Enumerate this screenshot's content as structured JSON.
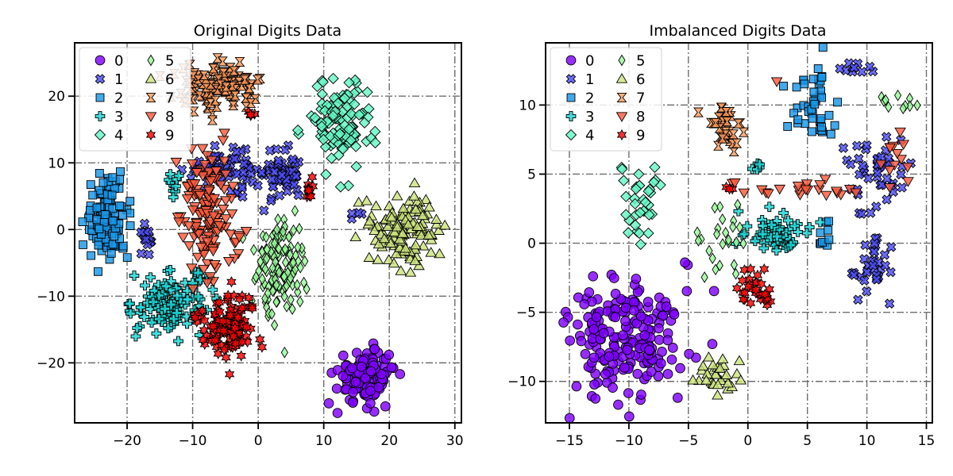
{
  "chart_data": [
    {
      "type": "scatter",
      "title": "Original Digits Data",
      "xlim": [
        -28,
        31
      ],
      "ylim": [
        -29,
        28
      ],
      "xticks": [
        -20,
        -10,
        0,
        10,
        20,
        30
      ],
      "yticks": [
        -20,
        -10,
        0,
        10,
        20
      ],
      "xtick_labels": [
        "−20",
        "−10",
        "0",
        "10",
        "20",
        "30"
      ],
      "ytick_labels": [
        "−20",
        "−10",
        "0",
        "10",
        "20"
      ],
      "grid": true,
      "legend_placement": "upper-left",
      "legend": [
        "0",
        "1",
        "2",
        "3",
        "4",
        "5",
        "6",
        "7",
        "8",
        "9"
      ],
      "clusters": [
        {
          "class": 0,
          "cx": 16.5,
          "cy": -22,
          "sx": 2.2,
          "sy": 2.0,
          "n": 130
        },
        {
          "class": 1,
          "cx": -5,
          "cy": 9,
          "sx": 3.0,
          "sy": 1.3,
          "n": 70
        },
        {
          "class": 1,
          "cx": 4,
          "cy": 8,
          "sx": 1.6,
          "sy": 1.8,
          "n": 55
        },
        {
          "class": 1,
          "cx": -17,
          "cy": -2,
          "sx": 0.5,
          "sy": 1.3,
          "n": 15
        },
        {
          "class": 1,
          "cx": 15,
          "cy": 2,
          "sx": 0.5,
          "sy": 0.3,
          "n": 4
        },
        {
          "class": 2,
          "cx": -23,
          "cy": 2,
          "sx": 1.6,
          "sy": 3.2,
          "n": 120
        },
        {
          "class": 3,
          "cx": -13.5,
          "cy": -11,
          "sx": 2.8,
          "sy": 2.2,
          "n": 110
        },
        {
          "class": 3,
          "cx": -13,
          "cy": 7,
          "sx": 0.8,
          "sy": 1.0,
          "n": 10
        },
        {
          "class": 3,
          "cx": -9,
          "cy": -7,
          "sx": 0.6,
          "sy": 0.8,
          "n": 6
        },
        {
          "class": 4,
          "cx": 12.5,
          "cy": 16,
          "sx": 2.5,
          "sy": 3.2,
          "n": 120
        },
        {
          "class": 5,
          "cx": 3.5,
          "cy": -5,
          "sx": 2.0,
          "sy": 4.0,
          "n": 130
        },
        {
          "class": 6,
          "cx": 22.5,
          "cy": 0,
          "sx": 2.4,
          "sy": 2.6,
          "n": 130
        },
        {
          "class": 7,
          "cx": -6,
          "cy": 21.5,
          "sx": 3.3,
          "sy": 1.7,
          "n": 110
        },
        {
          "class": 8,
          "cx": -7.5,
          "cy": 2,
          "sx": 2.2,
          "sy": 4.8,
          "n": 140
        },
        {
          "class": 9,
          "cx": -5,
          "cy": -14,
          "sx": 2.3,
          "sy": 2.4,
          "n": 130
        },
        {
          "class": 9,
          "cx": 8,
          "cy": 6.5,
          "sx": 0.4,
          "sy": 0.8,
          "n": 10
        },
        {
          "class": 9,
          "cx": -1,
          "cy": 17.5,
          "sx": 0.4,
          "sy": 0.3,
          "n": 4
        }
      ]
    },
    {
      "type": "scatter",
      "title": "Imbalanced Digits Data",
      "xlim": [
        -17,
        15.5
      ],
      "ylim": [
        -13,
        14.5
      ],
      "xticks": [
        -15,
        -10,
        -5,
        0,
        5,
        10,
        15
      ],
      "yticks": [
        -10,
        -5,
        0,
        5,
        10
      ],
      "xtick_labels": [
        "−15",
        "−10",
        "−5",
        "0",
        "5",
        "10",
        "15"
      ],
      "ytick_labels": [
        "−10",
        "−5",
        "0",
        "5",
        "10"
      ],
      "grid": true,
      "legend_placement": "upper-left",
      "legend": [
        "0",
        "1",
        "2",
        "3",
        "4",
        "5",
        "6",
        "7",
        "8",
        "9"
      ],
      "clusters": [
        {
          "class": 0,
          "cx": -10,
          "cy": -7,
          "sx": 2.3,
          "sy": 2.2,
          "n": 200
        },
        {
          "class": 1,
          "cx": 10.5,
          "cy": 5,
          "sx": 1.2,
          "sy": 1.3,
          "n": 45
        },
        {
          "class": 1,
          "cx": 10.5,
          "cy": -1.5,
          "sx": 0.9,
          "sy": 1.3,
          "n": 35
        },
        {
          "class": 1,
          "cx": 9,
          "cy": 12.7,
          "sx": 0.7,
          "sy": 0.3,
          "n": 10
        },
        {
          "class": 2,
          "cx": 5.5,
          "cy": 10,
          "sx": 1.1,
          "sy": 1.4,
          "n": 45
        },
        {
          "class": 2,
          "cx": 6.3,
          "cy": 0.5,
          "sx": 0.3,
          "sy": 0.9,
          "n": 10
        },
        {
          "class": 3,
          "cx": 2.2,
          "cy": 0.6,
          "sx": 1.5,
          "sy": 0.9,
          "n": 55
        },
        {
          "class": 3,
          "cx": 0.3,
          "cy": 5.8,
          "sx": 0.6,
          "sy": 0.4,
          "n": 5
        },
        {
          "class": 4,
          "cx": -8.8,
          "cy": 3,
          "sx": 0.9,
          "sy": 1.6,
          "n": 35
        },
        {
          "class": 5,
          "cx": -2.3,
          "cy": 0.3,
          "sx": 1.3,
          "sy": 1.6,
          "n": 25
        },
        {
          "class": 5,
          "cx": 12.3,
          "cy": 10.3,
          "sx": 0.9,
          "sy": 0.4,
          "n": 10
        },
        {
          "class": 6,
          "cx": -2.5,
          "cy": -9.5,
          "sx": 1.0,
          "sy": 0.8,
          "n": 30
        },
        {
          "class": 7,
          "cx": -1.7,
          "cy": 8.3,
          "sx": 0.8,
          "sy": 1.0,
          "n": 35
        },
        {
          "class": 8,
          "cx": 4.5,
          "cy": 4,
          "sx": 2.6,
          "sy": 0.3,
          "n": 22
        },
        {
          "class": 8,
          "cx": 12.2,
          "cy": 6.6,
          "sx": 1.0,
          "sy": 0.8,
          "n": 12
        },
        {
          "class": 8,
          "cx": 2.7,
          "cy": 11.8,
          "sx": 0.2,
          "sy": 0.2,
          "n": 1
        },
        {
          "class": 8,
          "cx": -1.2,
          "cy": 4.5,
          "sx": 0.2,
          "sy": 0.2,
          "n": 2
        },
        {
          "class": 9,
          "cx": 1.0,
          "cy": -3.4,
          "sx": 1.0,
          "sy": 0.6,
          "n": 30
        },
        {
          "class": 9,
          "cx": -1.8,
          "cy": 3.9,
          "sx": 0.3,
          "sy": 0.2,
          "n": 3
        }
      ]
    }
  ],
  "series_styles": [
    {
      "class": 0,
      "color": "#7f00ff",
      "marker": "circle"
    },
    {
      "class": 1,
      "color": "#4d4df8",
      "marker": "x-filled"
    },
    {
      "class": 2,
      "color": "#1996e8",
      "marker": "square"
    },
    {
      "class": 3,
      "color": "#1ad6d6",
      "marker": "plus-filled"
    },
    {
      "class": 4,
      "color": "#66f7c4",
      "marker": "diamond"
    },
    {
      "class": 5,
      "color": "#99f99a",
      "marker": "thin-diamond"
    },
    {
      "class": 6,
      "color": "#cce37d",
      "marker": "triangle-up"
    },
    {
      "class": 7,
      "color": "#ff9b5c",
      "marker": "hourglass"
    },
    {
      "class": 8,
      "color": "#ff5a3c",
      "marker": "triangle-down"
    },
    {
      "class": 9,
      "color": "#ff0000",
      "marker": "star6"
    }
  ]
}
